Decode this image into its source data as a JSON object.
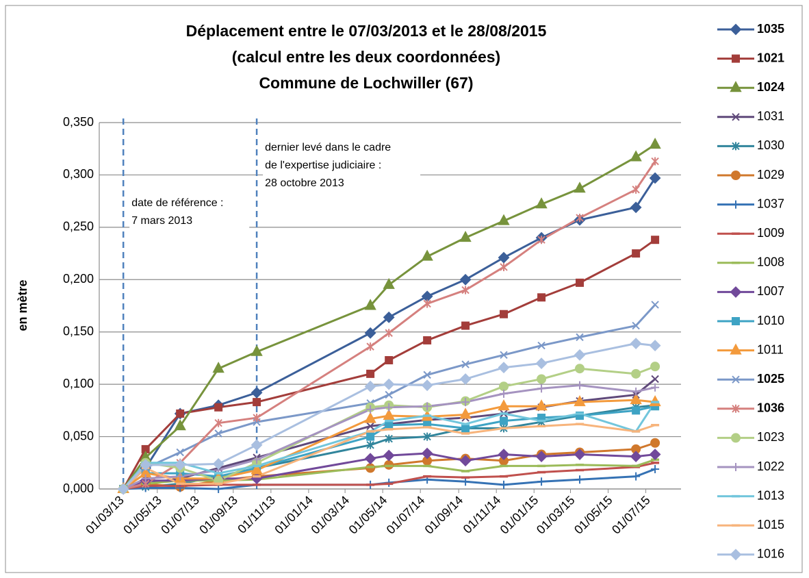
{
  "chart_data": {
    "type": "line",
    "title": [
      "Déplacement entre le 07/03/2013 et le 28/08/2015",
      "(calcul entre les deux coordonnées)",
      "Commune de Lochwiller (67)"
    ],
    "ylabel": "en mètre",
    "x": [
      "07/03/13",
      "12/04/13",
      "07/06/13",
      "08/08/13",
      "09/10/13",
      "11/04/14",
      "11/05/14",
      "12/07/14",
      "12/09/14",
      "13/11/14",
      "13/01/15",
      "16/03/15",
      "15/06/15",
      "16/07/15"
    ],
    "xlim": [
      "27/01/13",
      "27/08/15"
    ],
    "xticks": [
      "01/03/13",
      "01/05/13",
      "01/07/13",
      "01/09/13",
      "01/11/13",
      "01/01/14",
      "01/03/14",
      "01/05/14",
      "01/07/14",
      "01/09/14",
      "01/11/14",
      "01/01/15",
      "01/03/15",
      "01/05/15",
      "01/07/15"
    ],
    "ylim": [
      0,
      0.35
    ],
    "yticks": [
      {
        "value": 0,
        "label": "0,000"
      },
      {
        "value": 0.05,
        "label": "0,050"
      },
      {
        "value": 0.1,
        "label": "0,100"
      },
      {
        "value": 0.15,
        "label": "0,150"
      },
      {
        "value": 0.2,
        "label": "0,200"
      },
      {
        "value": 0.25,
        "label": "0,250"
      },
      {
        "value": 0.3,
        "label": "0,300"
      },
      {
        "value": 0.35,
        "label": "0,350"
      }
    ],
    "grid": true,
    "legend": "right",
    "vlines": [
      {
        "x": "07/03/13",
        "text": [
          "date de référence :",
          "7 mars 2013"
        ]
      },
      {
        "x": "09/10/13",
        "text": [
          "dernier levé dans le cadre",
          "de l'expertise judiciaire  :",
          "28 octobre 2013"
        ]
      }
    ],
    "series": [
      {
        "name": "1035",
        "color": "#3b5f99",
        "marker": "diamond",
        "label_color": "#ff0000",
        "values": [
          0,
          0.02,
          0.072,
          0.08,
          0.092,
          0.149,
          0.164,
          0.184,
          0.2,
          0.221,
          0.24,
          0.257,
          0.269,
          0.297
        ]
      },
      {
        "name": "1021",
        "color": "#a33d3a",
        "marker": "square",
        "label_color": "#ff0000",
        "values": [
          0,
          0.038,
          0.072,
          0.078,
          0.083,
          0.11,
          0.123,
          0.142,
          0.156,
          0.167,
          0.183,
          0.197,
          0.225,
          0.238
        ]
      },
      {
        "name": "1024",
        "color": "#77933c",
        "marker": "triangle",
        "label_color": "#ff0000",
        "values": [
          0,
          0.03,
          0.06,
          0.115,
          0.131,
          0.175,
          0.195,
          0.222,
          0.24,
          0.256,
          0.272,
          0.287,
          0.317,
          0.329
        ]
      },
      {
        "name": "1031",
        "color": "#5f497a",
        "marker": "x",
        "values": [
          0,
          0.005,
          0.01,
          0.02,
          0.03,
          0.06,
          0.062,
          0.066,
          0.068,
          0.072,
          0.078,
          0.084,
          0.09,
          0.105
        ]
      },
      {
        "name": "1030",
        "color": "#31859c",
        "marker": "star",
        "values": [
          0,
          0.002,
          0.005,
          0.012,
          0.02,
          0.042,
          0.048,
          0.05,
          0.058,
          0.058,
          0.064,
          0.07,
          0.078,
          0.08
        ]
      },
      {
        "name": "1029",
        "color": "#d0782c",
        "marker": "circle",
        "values": [
          0,
          0.005,
          0.002,
          0.008,
          0.012,
          0.02,
          0.023,
          0.027,
          0.029,
          0.027,
          0.033,
          0.035,
          0.038,
          0.044
        ]
      },
      {
        "name": "1037",
        "color": "#3572b4",
        "marker": "plus",
        "values": [
          0,
          0.001,
          0.001,
          0,
          0.004,
          0.004,
          0.006,
          0.009,
          0.007,
          0.004,
          0.007,
          0.009,
          0.012,
          0.019
        ]
      },
      {
        "name": "1009",
        "color": "#c0504d",
        "marker": "dash",
        "values": [
          0,
          0.003,
          0.003,
          0.004,
          0.004,
          0.004,
          0.005,
          0.012,
          0.011,
          0.012,
          0.016,
          0.018,
          0.021,
          0.025
        ]
      },
      {
        "name": "1008",
        "color": "#9bbb59",
        "marker": "dash",
        "values": [
          0,
          0.005,
          0.008,
          0.008,
          0.009,
          0.021,
          0.022,
          0.022,
          0.017,
          0.022,
          0.022,
          0.023,
          0.022,
          0.028
        ]
      },
      {
        "name": "1007",
        "color": "#71499a",
        "marker": "diamond",
        "values": [
          0,
          0.008,
          0.008,
          0.01,
          0.01,
          0.029,
          0.032,
          0.034,
          0.027,
          0.033,
          0.031,
          0.033,
          0.031,
          0.033
        ]
      },
      {
        "name": "1010",
        "color": "#3ea3c4",
        "marker": "square",
        "values": [
          0,
          0.015,
          0.015,
          0.012,
          0.02,
          0.05,
          0.061,
          0.062,
          0.058,
          0.065,
          0.068,
          0.07,
          0.075,
          0.079
        ]
      },
      {
        "name": "1011",
        "color": "#f39a3c",
        "marker": "triangle",
        "values": [
          0,
          0.015,
          0.01,
          0.01,
          0.018,
          0.067,
          0.07,
          0.069,
          0.071,
          0.079,
          0.079,
          0.083,
          0.085,
          0.083
        ]
      },
      {
        "name": "1025",
        "color": "#7b98c8",
        "marker": "x",
        "label_color": "#ff0000",
        "values": [
          0,
          0.02,
          0.035,
          0.053,
          0.064,
          0.082,
          0.09,
          0.109,
          0.119,
          0.128,
          0.137,
          0.145,
          0.156,
          0.176
        ]
      },
      {
        "name": "1036",
        "color": "#d5807e",
        "marker": "star",
        "label_color": "#ff0000",
        "values": [
          0,
          0.005,
          0.025,
          0.063,
          0.068,
          0.136,
          0.149,
          0.177,
          0.19,
          0.212,
          0.238,
          0.259,
          0.286,
          0.313
        ]
      },
      {
        "name": "1023",
        "color": "#b3cf86",
        "marker": "circle",
        "values": [
          0,
          0.025,
          0.02,
          0.008,
          0.025,
          0.078,
          0.08,
          0.078,
          0.084,
          0.098,
          0.105,
          0.115,
          0.11,
          0.117
        ]
      },
      {
        "name": "1022",
        "color": "#a593c0",
        "marker": "plus",
        "values": [
          0,
          0.01,
          0.012,
          0.018,
          0.028,
          0.076,
          0.078,
          0.079,
          0.083,
          0.091,
          0.096,
          0.099,
          0.093,
          0.097
        ]
      },
      {
        "name": "1013",
        "color": "#72c6dc",
        "marker": "dash",
        "values": [
          0,
          0.025,
          0.025,
          0.015,
          0.022,
          0.055,
          0.065,
          0.07,
          0.062,
          0.072,
          0.065,
          0.072,
          0.055,
          0.083
        ]
      },
      {
        "name": "1015",
        "color": "#f7b47c",
        "marker": "dash",
        "values": [
          0,
          0.02,
          0.005,
          0.005,
          0.012,
          0.055,
          0.057,
          0.059,
          0.053,
          0.058,
          0.06,
          0.062,
          0.055,
          0.061
        ]
      },
      {
        "name": "1016",
        "color": "#a9bfe0",
        "marker": "diamond",
        "values": [
          0,
          0.023,
          0.023,
          0.024,
          0.042,
          0.098,
          0.1,
          0.099,
          0.105,
          0.116,
          0.12,
          0.128,
          0.139,
          0.137
        ]
      }
    ]
  }
}
